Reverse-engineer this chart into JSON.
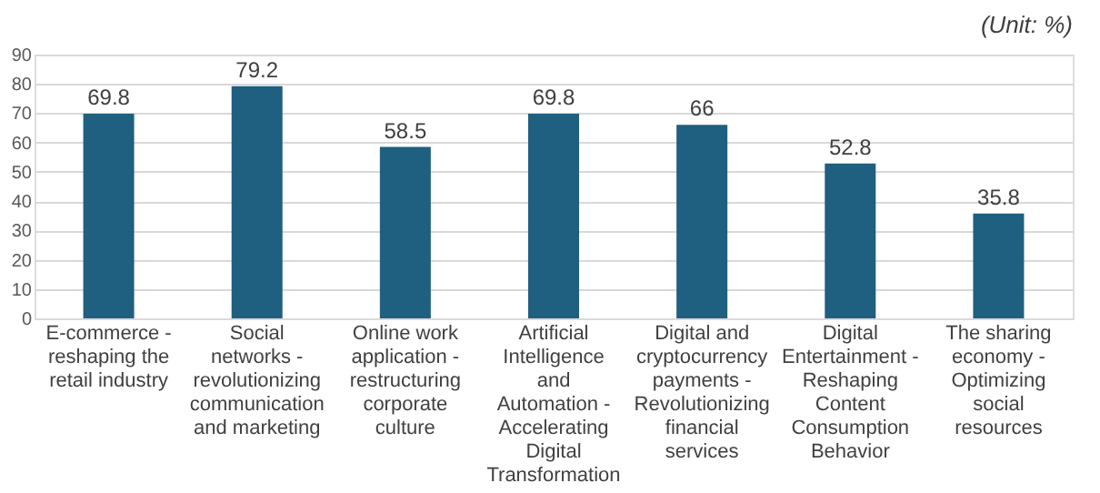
{
  "chart_data": {
    "type": "bar",
    "annotations": [
      "(Unit: %)"
    ],
    "categories": [
      "E-commerce - reshaping the retail industry",
      "Social networks - revolutionizing communication and marketing",
      "Online work application - restructuring corporate culture",
      "Artificial Intelligence and Automation - Accelerating Digital Transformation",
      "Digital and cryptocurrency payments - Revolutionizing financial services",
      "Digital Entertainment - Reshaping Content Consumption Behavior",
      "The sharing economy - Optimizing social resources"
    ],
    "values": [
      69.8,
      79.2,
      58.5,
      69.8,
      66,
      52.8,
      35.8
    ],
    "color": "#1f5f7f",
    "data_labels": true,
    "ylim": [
      0,
      90
    ],
    "yticks": [
      0,
      10,
      20,
      30,
      40,
      50,
      60,
      70,
      80,
      90
    ],
    "grid": "y"
  }
}
